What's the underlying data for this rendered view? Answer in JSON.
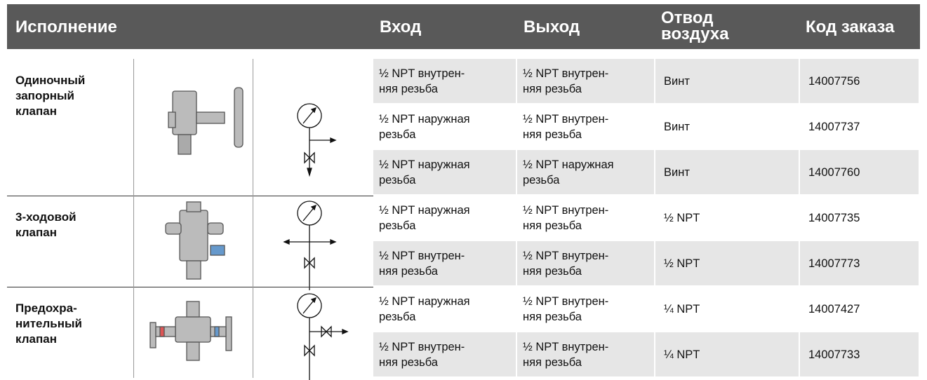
{
  "header": {
    "columns": [
      "Исполнение",
      "Вход",
      "Выход",
      "Отвод\nвоздуха",
      "Код заказа"
    ]
  },
  "groups": [
    {
      "name": "Одиночный\nзапорный\nклапан",
      "rows": [
        [
          "½ NPT внутрен-\nняя резьба",
          "½ NPT внутрен-\nняя резьба",
          "Винт",
          "14007756"
        ],
        [
          "½ NPT наружная\nрезьба",
          "½ NPT внутрен-\nняя резьба",
          "Винт",
          "14007737"
        ],
        [
          "½ NPT наружная\nрезьба",
          "½ NPT наружная\nрезьба",
          "Винт",
          "14007760"
        ]
      ]
    },
    {
      "name": "3-ходовой\nклапан",
      "rows": [
        [
          "½ NPT наружная\nрезьба",
          "½ NPT внутрен-\nняя резьба",
          "½ NPT",
          "14007735"
        ],
        [
          "½ NPT внутрен-\nняя резьба",
          "½ NPT внутрен-\nняя резьба",
          "½ NPT",
          "14007773"
        ]
      ]
    },
    {
      "name": "Предохра-\nнительный\nклапан",
      "rows": [
        [
          "½ NPT наружная\nрезьба",
          "½ NPT внутрен-\nняя резьба",
          "¼ NPT",
          "14007427"
        ],
        [
          "½ NPT внутрен-\nняя резьба",
          "½ NPT внутрен-\nняя резьба",
          "¼ NPT",
          "14007733"
        ]
      ]
    }
  ]
}
